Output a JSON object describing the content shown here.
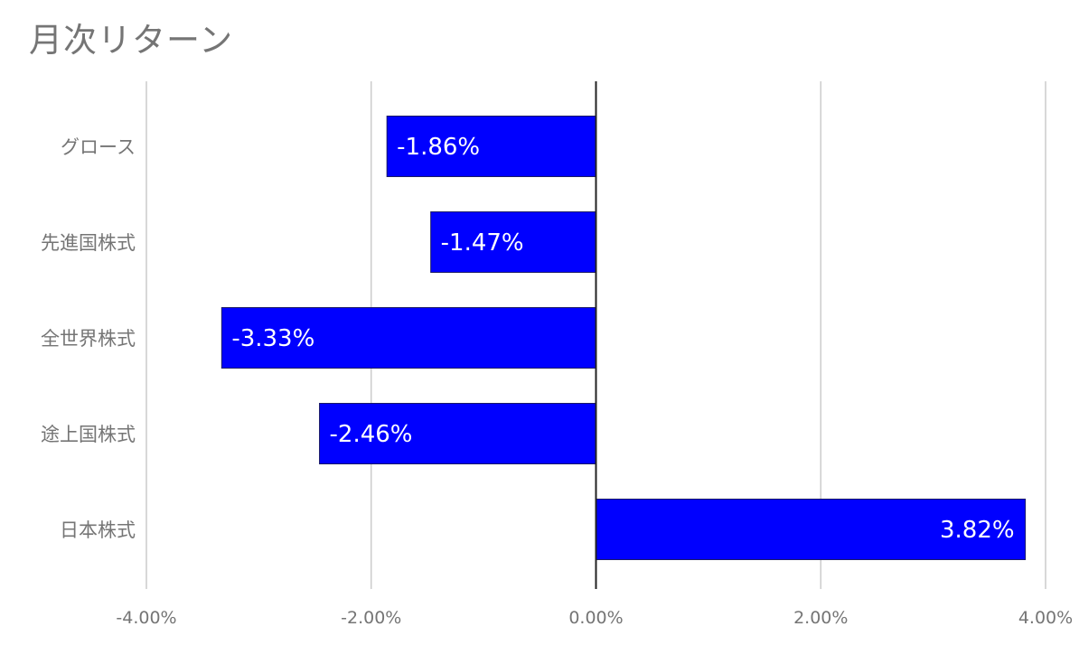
{
  "chart_data": {
    "type": "bar",
    "orientation": "horizontal",
    "title": "月次リターン",
    "categories": [
      "グロース",
      "先進国株式",
      "全世界株式",
      "途上国株式",
      "日本株式"
    ],
    "values": [
      -1.86,
      -1.47,
      -3.33,
      -2.46,
      3.82
    ],
    "data_labels": [
      "-1.86%",
      "-1.47%",
      "-3.33%",
      "-2.46%",
      "3.82%"
    ],
    "xlim": [
      -4,
      4
    ],
    "x_ticks": [
      -4,
      -2,
      0,
      2,
      4
    ],
    "x_tick_labels": [
      "-4.00%",
      "-2.00%",
      "0.00%",
      "2.00%",
      "4.00%"
    ],
    "xlabel": "",
    "ylabel": "",
    "grid": true,
    "legend": "none",
    "bar_color": "#0000ff",
    "grid_color": "#cccccc",
    "zero_line_color": "#222222",
    "label_color": "#757575",
    "data_label_color": "#ffffff"
  }
}
